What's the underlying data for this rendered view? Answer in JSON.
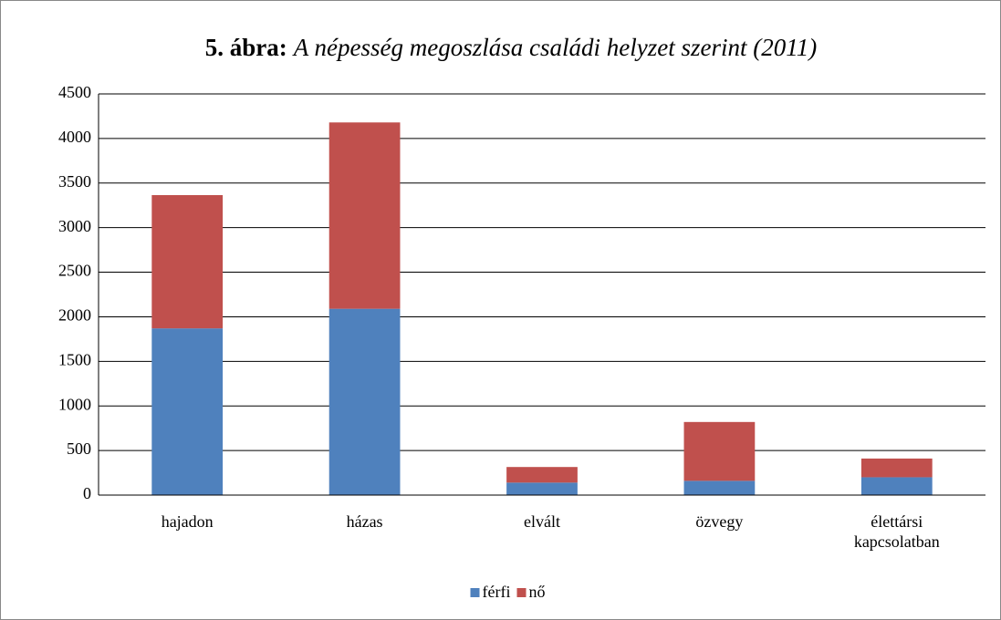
{
  "chart_data": {
    "type": "stacked_bar",
    "title_label": "5. ábra:",
    "title": "A népesség megoszlása családi helyzet szerint (2011)",
    "categories": [
      "hajadon",
      "házas",
      "elvált",
      "özvegy",
      "élettársi kapcsolatban"
    ],
    "series": [
      {
        "name": "férfi",
        "color": "#4f81bd",
        "values": [
          1870,
          2090,
          140,
          160,
          200
        ]
      },
      {
        "name": "nő",
        "color": "#c0504d",
        "values": [
          1495,
          2090,
          175,
          660,
          210
        ]
      }
    ],
    "ylim": [
      0,
      4500
    ],
    "yticks": [
      0,
      500,
      1000,
      1500,
      2000,
      2500,
      3000,
      3500,
      4000,
      4500
    ],
    "grid": true,
    "legend": "bottom"
  }
}
